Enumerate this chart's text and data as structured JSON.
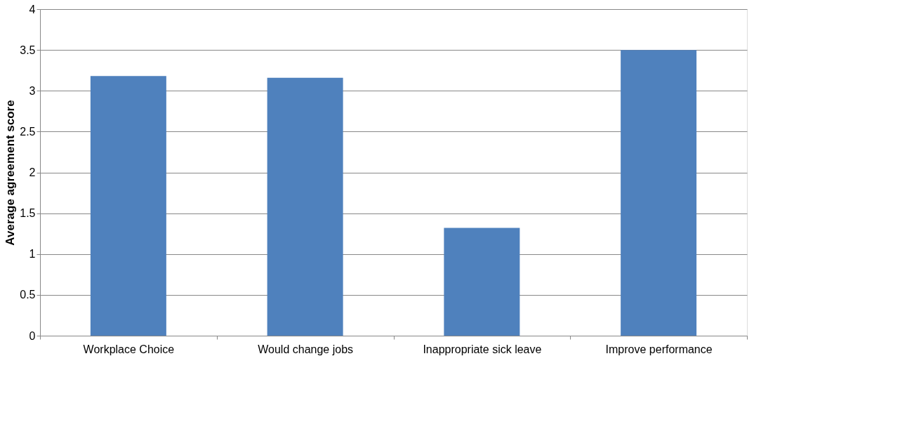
{
  "chart_data": {
    "type": "bar",
    "ylabel": "Average agreement score",
    "categories": [
      "Workplace Choice",
      "Would change jobs",
      "Inappropriate sick leave",
      "Improve  performance"
    ],
    "values": [
      3.18,
      3.16,
      1.32,
      3.5
    ],
    "color": "#4f81bd",
    "ylim": [
      0,
      4
    ],
    "yticks": [
      0,
      0.5,
      1,
      1.5,
      2,
      2.5,
      3,
      3.5,
      4
    ],
    "grid": "y"
  }
}
